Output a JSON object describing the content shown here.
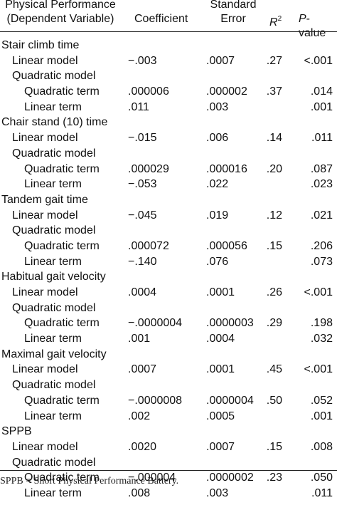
{
  "header": {
    "performance_line1": "Physical Performance",
    "performance_line2": "(Dependent Variable)",
    "coefficient": "Coefficient",
    "se_line1": "Standard",
    "se_line2": "Error",
    "r2_letter": "R",
    "r2_sup": "2",
    "p_letter": "P",
    "p_rest": "-value"
  },
  "rows": [
    {
      "level": 0,
      "label": "Stair climb time",
      "coef": "",
      "se": "",
      "r2": "",
      "p": ""
    },
    {
      "level": 1,
      "label": "Linear model",
      "coef": "−.003",
      "se": ".0007",
      "r2": ".27",
      "p": "<.001"
    },
    {
      "level": 1,
      "label": "Quadratic model",
      "coef": "",
      "se": "",
      "r2": "",
      "p": ""
    },
    {
      "level": 2,
      "label": "Quadratic term",
      "coef": ".000006",
      "se": ".000002",
      "r2": ".37",
      "p": ".014"
    },
    {
      "level": 2,
      "label": "Linear term",
      "coef": ".011",
      "se": ".003",
      "r2": "",
      "p": ".001"
    },
    {
      "level": 0,
      "label": "Chair stand (10) time",
      "coef": "",
      "se": "",
      "r2": "",
      "p": ""
    },
    {
      "level": 1,
      "label": "Linear model",
      "coef": "−.015",
      "se": ".006",
      "r2": ".14",
      "p": ".011"
    },
    {
      "level": 1,
      "label": "Quadratic model",
      "coef": "",
      "se": "",
      "r2": "",
      "p": ""
    },
    {
      "level": 2,
      "label": "Quadratic term",
      "coef": ".000029",
      "se": ".000016",
      "r2": ".20",
      "p": ".087"
    },
    {
      "level": 2,
      "label": "Linear term",
      "coef": "−.053",
      "se": ".022",
      "r2": "",
      "p": ".023"
    },
    {
      "level": 0,
      "label": "Tandem gait time",
      "coef": "",
      "se": "",
      "r2": "",
      "p": ""
    },
    {
      "level": 1,
      "label": "Linear model",
      "coef": "−.045",
      "se": ".019",
      "r2": ".12",
      "p": ".021"
    },
    {
      "level": 1,
      "label": "Quadratic model",
      "coef": "",
      "se": "",
      "r2": "",
      "p": ""
    },
    {
      "level": 2,
      "label": "Quadratic term",
      "coef": ".000072",
      "se": ".000056",
      "r2": ".15",
      "p": ".206"
    },
    {
      "level": 2,
      "label": "Linear term",
      "coef": "−.140",
      "se": ".076",
      "r2": "",
      "p": ".073"
    },
    {
      "level": 0,
      "label": "Habitual gait velocity",
      "coef": "",
      "se": "",
      "r2": "",
      "p": ""
    },
    {
      "level": 1,
      "label": "Linear model",
      "coef": ".0004",
      "se": ".0001",
      "r2": ".26",
      "p": "<.001"
    },
    {
      "level": 1,
      "label": "Quadratic model",
      "coef": "",
      "se": "",
      "r2": "",
      "p": ""
    },
    {
      "level": 2,
      "label": "Quadratic term",
      "coef": "−.0000004",
      "se": ".0000003",
      "r2": ".29",
      "p": ".198"
    },
    {
      "level": 2,
      "label": "Linear term",
      "coef": ".001",
      "se": ".0004",
      "r2": "",
      "p": ".032"
    },
    {
      "level": 0,
      "label": "Maximal gait velocity",
      "coef": "",
      "se": "",
      "r2": "",
      "p": ""
    },
    {
      "level": 1,
      "label": "Linear model",
      "coef": ".0007",
      "se": ".0001",
      "r2": ".45",
      "p": "<.001"
    },
    {
      "level": 1,
      "label": "Quadratic model",
      "coef": "",
      "se": "",
      "r2": "",
      "p": ""
    },
    {
      "level": 2,
      "label": "Quadratic term",
      "coef": "−.0000008",
      "se": ".0000004",
      "r2": ".50",
      "p": ".052"
    },
    {
      "level": 2,
      "label": "Linear term",
      "coef": ".002",
      "se": ".0005",
      "r2": "",
      "p": ".001"
    },
    {
      "level": 0,
      "label": "SPPB",
      "coef": "",
      "se": "",
      "r2": "",
      "p": ""
    },
    {
      "level": 1,
      "label": "Linear model",
      "coef": ".0020",
      "se": ".0007",
      "r2": ".15",
      "p": ".008"
    },
    {
      "level": 1,
      "label": "Quadratic model",
      "coef": "",
      "se": "",
      "r2": "",
      "p": ""
    },
    {
      "level": 2,
      "label": "Quadratic term",
      "coef": "−.000004",
      "se": ".0000002",
      "r2": ".23",
      "p": ".050"
    },
    {
      "level": 2,
      "label": "Linear term",
      "coef": ".008",
      "se": ".003",
      "r2": "",
      "p": ".011"
    }
  ],
  "footnote": "SPPB = Short Physical Performance Battery."
}
